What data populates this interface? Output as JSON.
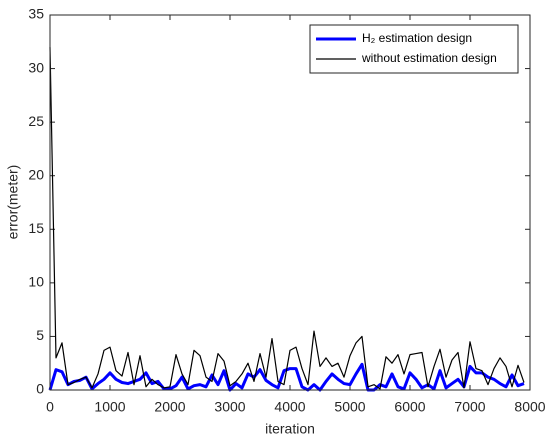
{
  "chart_data": {
    "type": "line",
    "xlabel": "iteration",
    "ylabel": "error(meter)",
    "x": [
      0,
      100,
      200,
      300,
      400,
      500,
      600,
      700,
      800,
      900,
      1000,
      1100,
      1200,
      1300,
      1400,
      1500,
      1600,
      1700,
      1800,
      1900,
      2000,
      2100,
      2200,
      2300,
      2400,
      2500,
      2600,
      2700,
      2800,
      2900,
      3000,
      3100,
      3200,
      3300,
      3400,
      3500,
      3600,
      3700,
      3800,
      3900,
      4000,
      4100,
      4200,
      4300,
      4400,
      4500,
      4600,
      4700,
      4800,
      4900,
      5000,
      5100,
      5200,
      5300,
      5400,
      5500,
      5600,
      5700,
      5800,
      5900,
      6000,
      6100,
      6200,
      6300,
      6400,
      6500,
      6600,
      6700,
      6800,
      6900,
      7000,
      7100,
      7200,
      7300,
      7400,
      7500,
      7600,
      7700,
      7800,
      7900
    ],
    "series": [
      {
        "name": "H₂ estimation design",
        "color": "#0000ff",
        "width": 3,
        "values": [
          0,
          1.9,
          1.7,
          0.5,
          0.8,
          0.9,
          1.2,
          0.1,
          0.6,
          1,
          1.6,
          1,
          0.7,
          0.6,
          0.8,
          1,
          1.6,
          0.6,
          0.8,
          0.1,
          0.1,
          0.4,
          1.2,
          0.1,
          0.4,
          0.5,
          0.3,
          1.4,
          0.5,
          1.8,
          0,
          0.6,
          0.2,
          1.5,
          1.2,
          1.9,
          0.9,
          0.5,
          0.2,
          1.8,
          2,
          2,
          0.3,
          0,
          0.5,
          0,
          0.8,
          1.5,
          1,
          0.6,
          0.5,
          1.5,
          2.4,
          0,
          0,
          0.5,
          0.3,
          1.5,
          0.3,
          0.1,
          1.6,
          1,
          0.2,
          0.5,
          0.1,
          1.8,
          0.2,
          0.6,
          1,
          0.3,
          2.2,
          1.6,
          1.6,
          1.2,
          1,
          0.6,
          0.3,
          1.4,
          0.4,
          0.6
        ]
      },
      {
        "name": "without estimation design",
        "color": "#000000",
        "width": 1.2,
        "values": [
          32,
          3,
          4.4,
          0.5,
          0.7,
          1,
          1.2,
          0.2,
          1.5,
          3.7,
          4,
          1.8,
          1.3,
          3.5,
          0.5,
          3.2,
          0.3,
          1,
          0.5,
          0.2,
          0.3,
          3.3,
          1.5,
          0.5,
          3.7,
          3.2,
          1.2,
          0.8,
          3.4,
          2.7,
          0.4,
          0.8,
          1.5,
          2.5,
          0.8,
          3.4,
          1.2,
          4.8,
          0.8,
          0.5,
          3.7,
          4,
          2,
          0.5,
          5.5,
          2.2,
          3,
          2.2,
          2.5,
          1.2,
          3.2,
          4.4,
          5,
          0.3,
          0.5,
          0.1,
          3.1,
          2.5,
          3.3,
          1.5,
          3.3,
          3.4,
          3.5,
          0.3,
          2.2,
          3.8,
          1.2,
          2.8,
          3.5,
          0.2,
          4.5,
          2,
          1.8,
          0.5,
          2,
          3,
          2.2,
          0.3,
          2.3,
          0.7
        ]
      }
    ],
    "xlim": [
      0,
      8000
    ],
    "xticks": [
      0,
      1000,
      2000,
      3000,
      4000,
      5000,
      6000,
      7000,
      8000
    ],
    "ylim": [
      0,
      35
    ],
    "yticks": [
      0,
      5,
      10,
      15,
      20,
      25,
      30,
      35
    ],
    "grid": false,
    "legend": "upper right"
  }
}
